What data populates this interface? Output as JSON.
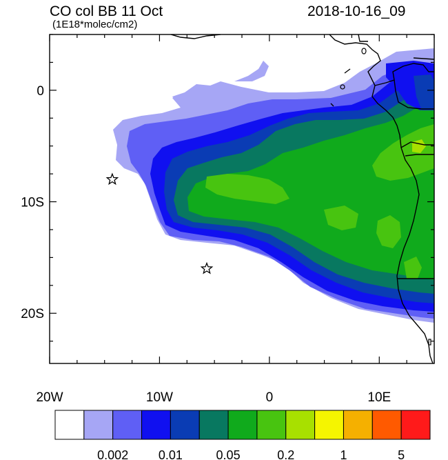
{
  "title": "CO col BB 11 Oct",
  "units": "(1E18*molec/cm2)",
  "timestamp": "2018-10-16_09",
  "map": {
    "lon_range": [
      -20,
      15
    ],
    "lat_range": [
      -24.5,
      5
    ],
    "lon_ticks": [
      {
        "value": -20,
        "label": "20W"
      },
      {
        "value": -10,
        "label": "10W"
      },
      {
        "value": 0,
        "label": "0"
      },
      {
        "value": 10,
        "label": "10E"
      }
    ],
    "lat_ticks": [
      {
        "value": 0,
        "label": "0"
      },
      {
        "value": -10,
        "label": "10S"
      },
      {
        "value": -20,
        "label": "20S"
      }
    ],
    "markers": [
      {
        "name": "star",
        "lon": -14.3,
        "lat": -8.0
      },
      {
        "name": "star",
        "lon": -5.7,
        "lat": -16.0
      }
    ]
  },
  "legend": {
    "colors": [
      "#ffffff",
      "#a6a6f5",
      "#5f5ff5",
      "#1010f0",
      "#0a3cb4",
      "#087860",
      "#10aa1c",
      "#48c410",
      "#a8e000",
      "#f5f500",
      "#f5b000",
      "#ff5a00",
      "#ff1a1a"
    ],
    "labels": [
      "0.002",
      "0.01",
      "0.05",
      "0.2",
      "1",
      "5"
    ]
  }
}
